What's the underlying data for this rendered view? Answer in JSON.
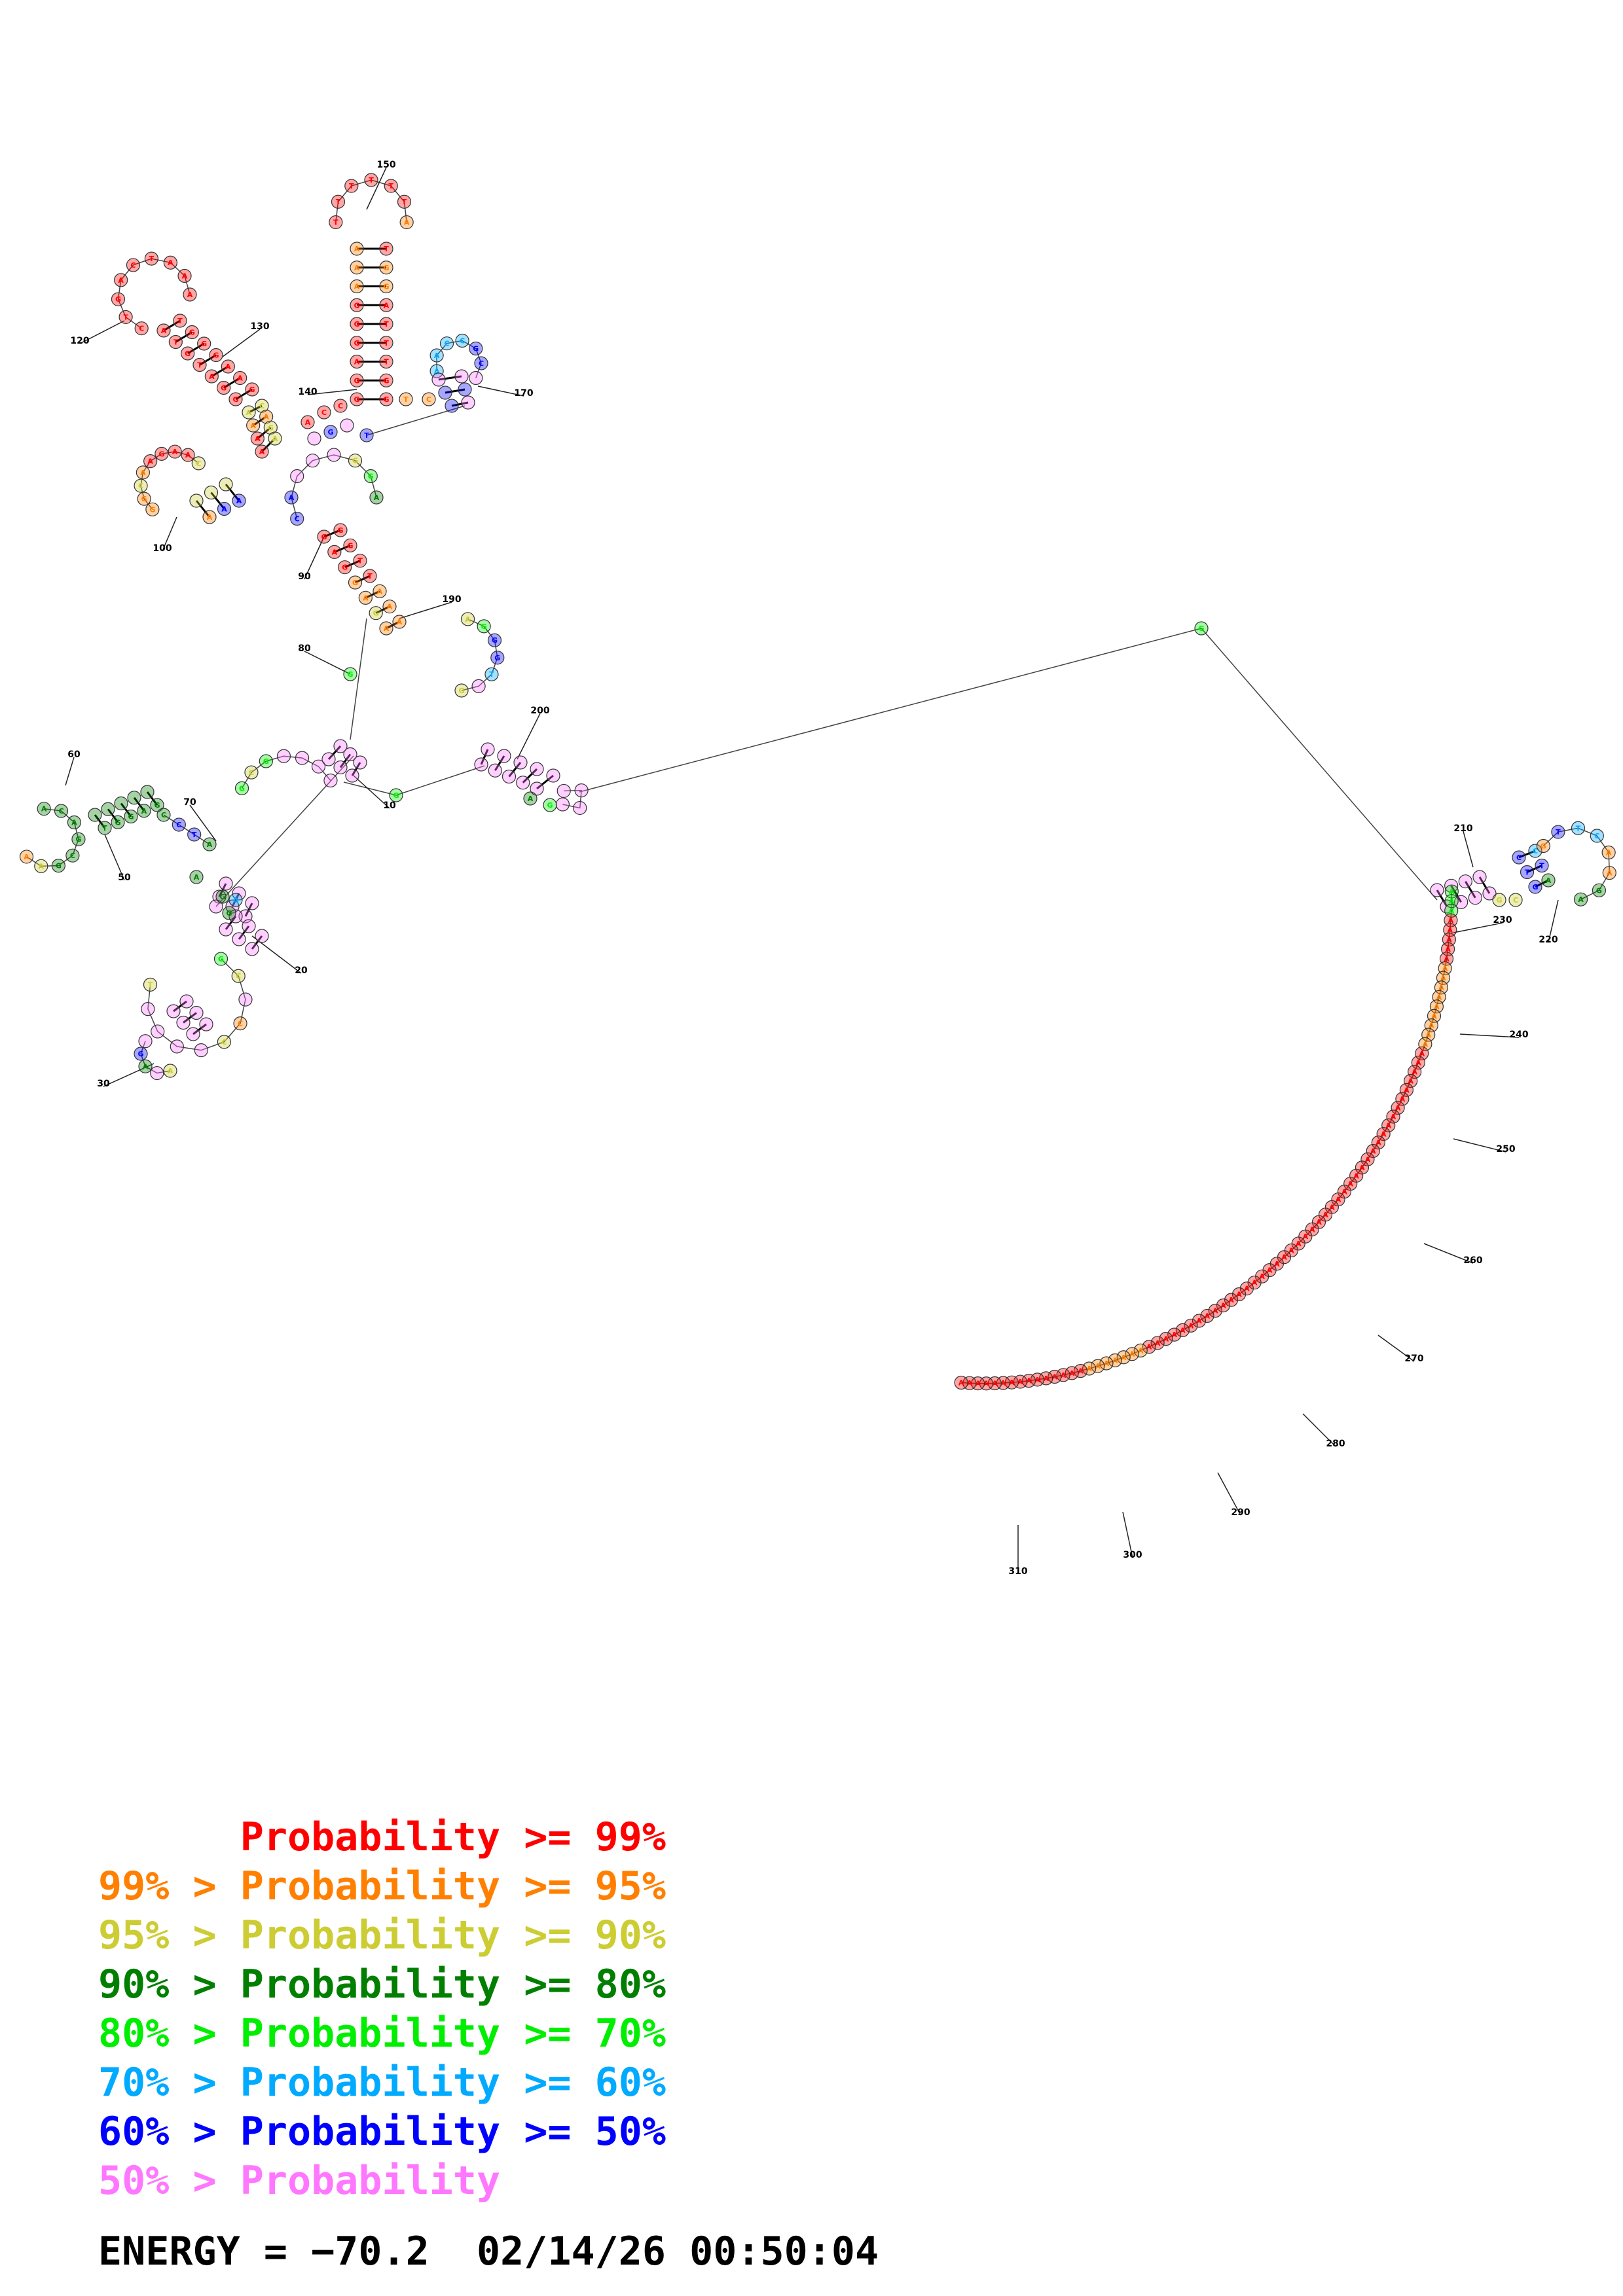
{
  "legend": {
    "items": [
      {
        "text": "      Probability >= 99%",
        "color": "#ff0000"
      },
      {
        "text": "99% > Probability >= 95%",
        "color": "#ff7f00"
      },
      {
        "text": "95% > Probability >= 90%",
        "color": "#cccc33"
      },
      {
        "text": "90% > Probability >= 80%",
        "color": "#007f00"
      },
      {
        "text": "80% > Probability >= 70%",
        "color": "#00ee00"
      },
      {
        "text": "70% > Probability >= 60%",
        "color": "#00aaff"
      },
      {
        "text": "60% > Probability >= 50%",
        "color": "#0000ff"
      },
      {
        "text": "50% > Probability",
        "color": "#ff77ff"
      }
    ]
  },
  "footer": {
    "energy": "ENERGY = −70.2",
    "timestamp": "02/14/26 00:50:04"
  },
  "index_labels": [
    "10",
    "20",
    "30",
    "50",
    "60",
    "70",
    "80",
    "90",
    "100",
    "120",
    "130",
    "140",
    "150",
    "170",
    "190",
    "200",
    "210",
    "220",
    "230",
    "240",
    "250",
    "260",
    "270",
    "280",
    "290",
    "300",
    "310"
  ],
  "tiers": {
    "red": "#ff0000",
    "orange": "#ff7f00",
    "yellow": "#cccc33",
    "dkgreen": "#007f00",
    "green": "#00ee00",
    "cyan": "#00aaff",
    "blue": "#0000ff",
    "pink": "#ff77ff"
  }
}
